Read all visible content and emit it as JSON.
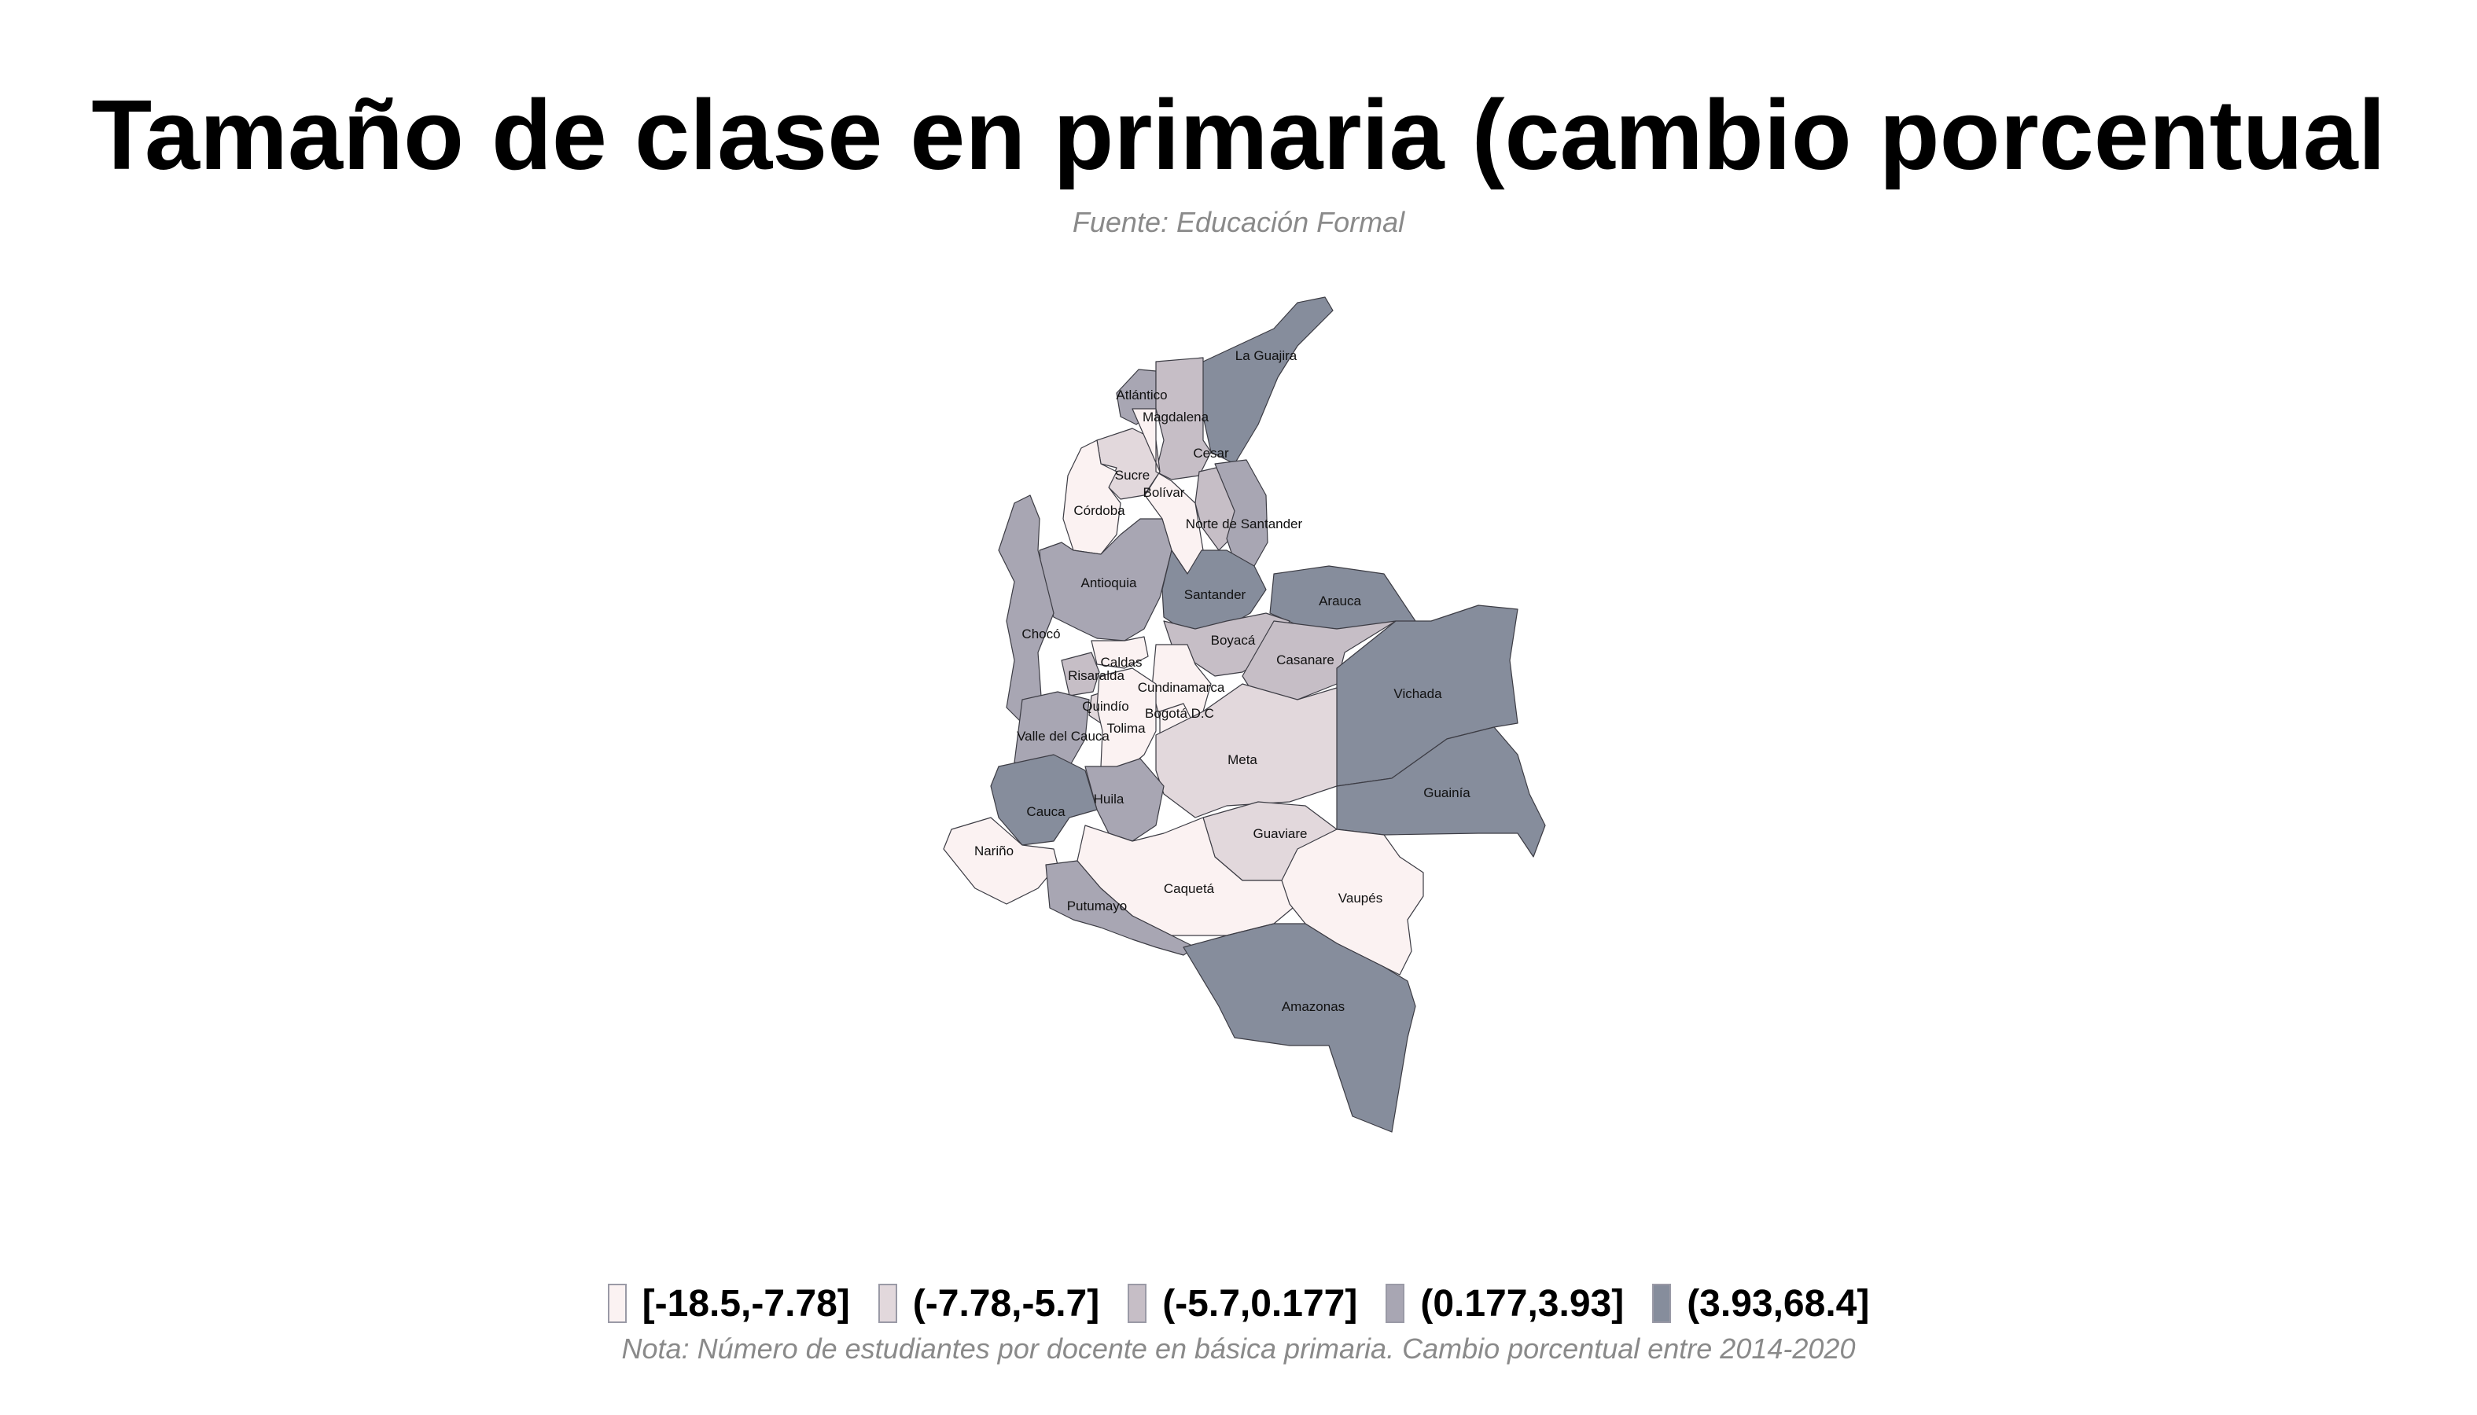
{
  "title": "Tamaño de clase en primaria (cambio porcentual",
  "subtitle": "Fuente: Educación Formal",
  "note": "Nota: Número de estudiantes por docente en básica primaria. Cambio porcentual entre 2014-2020",
  "colors": {
    "c1": "#fbf2f2",
    "c2": "#e2d8dc",
    "c3": "#c6bec6",
    "c4": "#a8a6b3",
    "c5": "#868d9c",
    "border": "#3c3c44"
  },
  "legend": [
    {
      "label": "[-18.5,-7.78]",
      "class": "c1"
    },
    {
      "label": "(-7.78,-5.7]",
      "class": "c2"
    },
    {
      "label": "(-5.7,0.177]",
      "class": "c3"
    },
    {
      "label": "(0.177,3.93]",
      "class": "c4"
    },
    {
      "label": "(3.93,68.4]",
      "class": "c5"
    }
  ],
  "departments": [
    {
      "name": "La Guajira",
      "class": "c5"
    },
    {
      "name": "Atlántico",
      "class": "c4"
    },
    {
      "name": "Magdalena",
      "class": "c3"
    },
    {
      "name": "Cesar",
      "class": "c3"
    },
    {
      "name": "Sucre",
      "class": "c2"
    },
    {
      "name": "Bolívar",
      "class": "c1"
    },
    {
      "name": "Córdoba",
      "class": "c1"
    },
    {
      "name": "Norte de Santander",
      "class": "c4"
    },
    {
      "name": "Antioquia",
      "class": "c4"
    },
    {
      "name": "Santander",
      "class": "c5"
    },
    {
      "name": "Arauca",
      "class": "c5"
    },
    {
      "name": "Chocó",
      "class": "c4"
    },
    {
      "name": "Boyacá",
      "class": "c3"
    },
    {
      "name": "Caldas",
      "class": "c1"
    },
    {
      "name": "Casanare",
      "class": "c3"
    },
    {
      "name": "Vichada",
      "class": "c5"
    },
    {
      "name": "Risaralda",
      "class": "c3"
    },
    {
      "name": "Cundinamarca",
      "class": "c1"
    },
    {
      "name": "Quindío",
      "class": "c2"
    },
    {
      "name": "Bogotá D.C",
      "class": "c1"
    },
    {
      "name": "Valle del Cauca",
      "class": "c4"
    },
    {
      "name": "Tolima",
      "class": "c1"
    },
    {
      "name": "Meta",
      "class": "c2"
    },
    {
      "name": "Huila",
      "class": "c4"
    },
    {
      "name": "Cauca",
      "class": "c5"
    },
    {
      "name": "Guainía",
      "class": "c5"
    },
    {
      "name": "Guaviare",
      "class": "c2"
    },
    {
      "name": "Nariño",
      "class": "c1"
    },
    {
      "name": "Caquetá",
      "class": "c1"
    },
    {
      "name": "Vaupés",
      "class": "c1"
    },
    {
      "name": "Putumayo",
      "class": "c4"
    },
    {
      "name": "Amazonas",
      "class": "c5"
    }
  ]
}
